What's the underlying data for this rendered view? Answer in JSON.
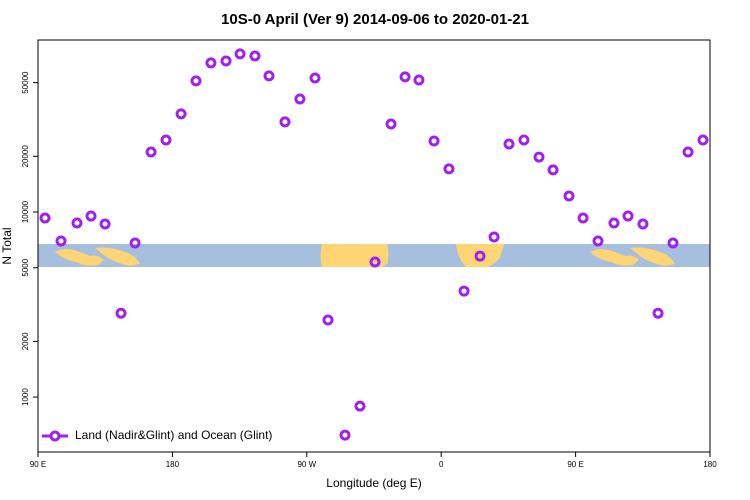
{
  "chart_data": {
    "type": "scatter",
    "title": "10S-0 April (Ver 9)   2014-09-06 to 2020-01-21",
    "x_label": "Longitude (deg E)",
    "y_label": "N Total",
    "log_y": true,
    "legend_position": "lower left",
    "xlim": [
      90,
      540
    ],
    "xticks": [
      {
        "value": 90,
        "label": "90 E"
      },
      180,
      {
        "value": 270,
        "label": "90 W"
      },
      {
        "value": 360,
        "label": "0"
      },
      {
        "value": 450,
        "label": "90 E"
      },
      {
        "value": 540,
        "label": "180"
      }
    ],
    "ylim": [
      505,
      85000
    ],
    "yticks": [
      1000,
      2000,
      5000,
      10000,
      20000,
      50000
    ],
    "series": [
      {
        "name": "Land (Nadir&Glint) and Ocean (Glint)",
        "color": "#a020f0",
        "x": [
          94.7,
          105.4,
          116.1,
          125.5,
          134.9,
          145.6,
          155,
          165.7,
          175.7,
          185.8,
          195.8,
          205.8,
          215.9,
          225.3,
          235.3,
          244.7,
          255.4,
          265.4,
          275.5,
          284.2,
          295.6,
          305.6,
          315.7,
          326.4,
          335.8,
          345.1,
          355.2,
          365.2,
          375.3,
          386,
          395.4,
          405.4,
          415.4,
          425.5,
          434.9,
          445.6,
          455,
          465,
          475.7,
          485.1,
          495.1,
          505.2,
          515.2,
          525.3,
          535.3
        ],
        "values": [
          9280,
          6970,
          8720,
          9510,
          8610,
          2840,
          6800,
          21100,
          24500,
          33900,
          51100,
          63900,
          65500,
          71500,
          69700,
          54400,
          30700,
          40800,
          53000,
          2610,
          623,
          894,
          5370,
          29900,
          53700,
          51700,
          24200,
          17100,
          3740,
          5780,
          7330,
          23300,
          24500,
          19800,
          16900,
          12200,
          9280,
          6970,
          8720,
          9510,
          8610,
          2840,
          6800,
          21100,
          24500
        ]
      }
    ]
  }
}
